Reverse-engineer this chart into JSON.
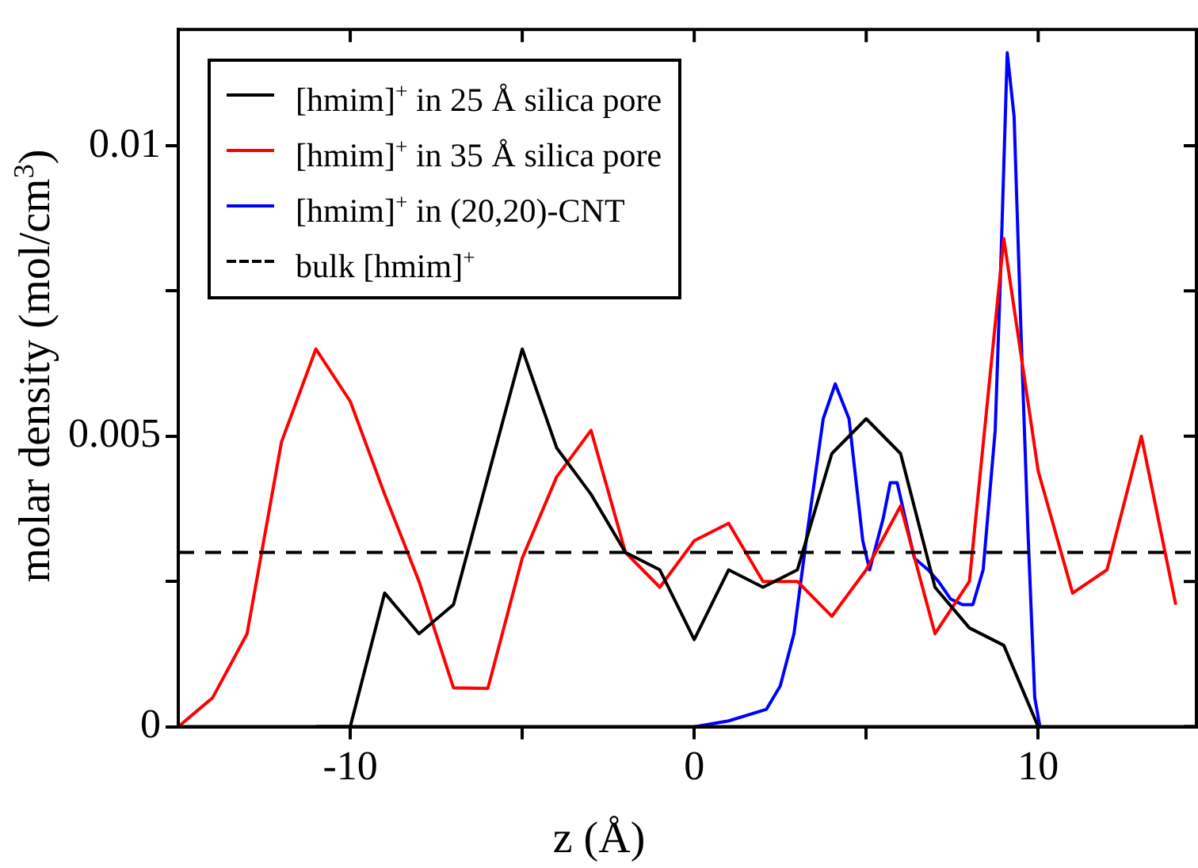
{
  "chart_data": {
    "type": "line",
    "xlabel": "z (Å)",
    "ylabel": "molar density  (mol/cm$^{3}$)",
    "xlim": [
      -15,
      14.6
    ],
    "ylim": [
      0,
      0.012
    ],
    "xticks": [
      -10,
      {
        "value": -5,
        "label": null
      },
      0,
      {
        "value": 5,
        "label": null
      },
      10
    ],
    "yticks": [
      0,
      {
        "value": 0.0025,
        "label": null
      },
      0.005,
      {
        "value": 0.0075,
        "label": null
      },
      0.01
    ],
    "grid": false,
    "legend": "top left",
    "line_style": "solid",
    "series": [
      {
        "name": "[hmim]$^{+}$ in 25 Å silica pore",
        "color": "#000000",
        "x": [
          -11,
          -10,
          -9,
          -8,
          -7,
          -6,
          -5,
          -4,
          -3,
          -2,
          -1,
          0,
          1,
          2,
          3,
          4,
          5,
          6,
          7,
          8,
          9,
          10
        ],
        "values": [
          0,
          0,
          0.0023,
          0.0016,
          0.0021,
          0.0043,
          0.0065,
          0.0048,
          0.004,
          0.003,
          0.0027,
          0.0015,
          0.0027,
          0.0024,
          0.0027,
          0.0047,
          0.0053,
          0.0047,
          0.0024,
          0.0017,
          0.0014,
          0
        ]
      },
      {
        "name": "[hmim]$^{+}$ in 35 Å silica pore",
        "color": "#ff0000",
        "x": [
          -15,
          -14,
          -13,
          -12,
          -11,
          -10,
          -9,
          -8,
          -7,
          -6,
          -5,
          -4,
          -3,
          -2,
          -1,
          0,
          1,
          2,
          3,
          4,
          5,
          6,
          7,
          8,
          9,
          10,
          11,
          12,
          13,
          14
        ],
        "values": [
          0,
          0.0005,
          0.0016,
          0.0049,
          0.0065,
          0.0056,
          0.004,
          0.0025,
          0.00067,
          0.00066,
          0.0029,
          0.0043,
          0.0051,
          0.003,
          0.0024,
          0.0032,
          0.0035,
          0.0025,
          0.0025,
          0.0019,
          0.0027,
          0.0038,
          0.0016,
          0.0025,
          0.0084,
          0.0044,
          0.0023,
          0.0027,
          0.005,
          0.0021
        ]
      },
      {
        "name": "[hmim]$^{+}$ in (20,20)-CNT",
        "color": "#0000ff",
        "x": [
          0,
          1,
          2.1,
          2.5,
          2.9,
          3.3,
          3.75,
          4.1,
          4.5,
          4.9,
          5.1,
          5.5,
          5.7,
          5.9,
          6.4,
          6.8,
          7.1,
          7.45,
          7.8,
          8.1,
          8.4,
          8.75,
          8.9,
          9.1,
          9.3,
          9.5,
          9.7,
          9.9,
          10.05
        ],
        "values": [
          0,
          0.0001,
          0.0003,
          0.0007,
          0.0016,
          0.0034,
          0.0053,
          0.0059,
          0.0053,
          0.0032,
          0.0027,
          0.0036,
          0.0042,
          0.0042,
          0.0029,
          0.0027,
          0.0025,
          0.0022,
          0.0021,
          0.0021,
          0.0027,
          0.0051,
          0.0077,
          0.0116,
          0.0105,
          0.0068,
          0.0034,
          0.0005,
          0
        ]
      }
    ],
    "ref_lines": [
      {
        "axis": "y",
        "value": 0.003,
        "label": "bulk [hmim]$^{+}$",
        "color": "#000000",
        "line_style": "dashed"
      }
    ]
  }
}
